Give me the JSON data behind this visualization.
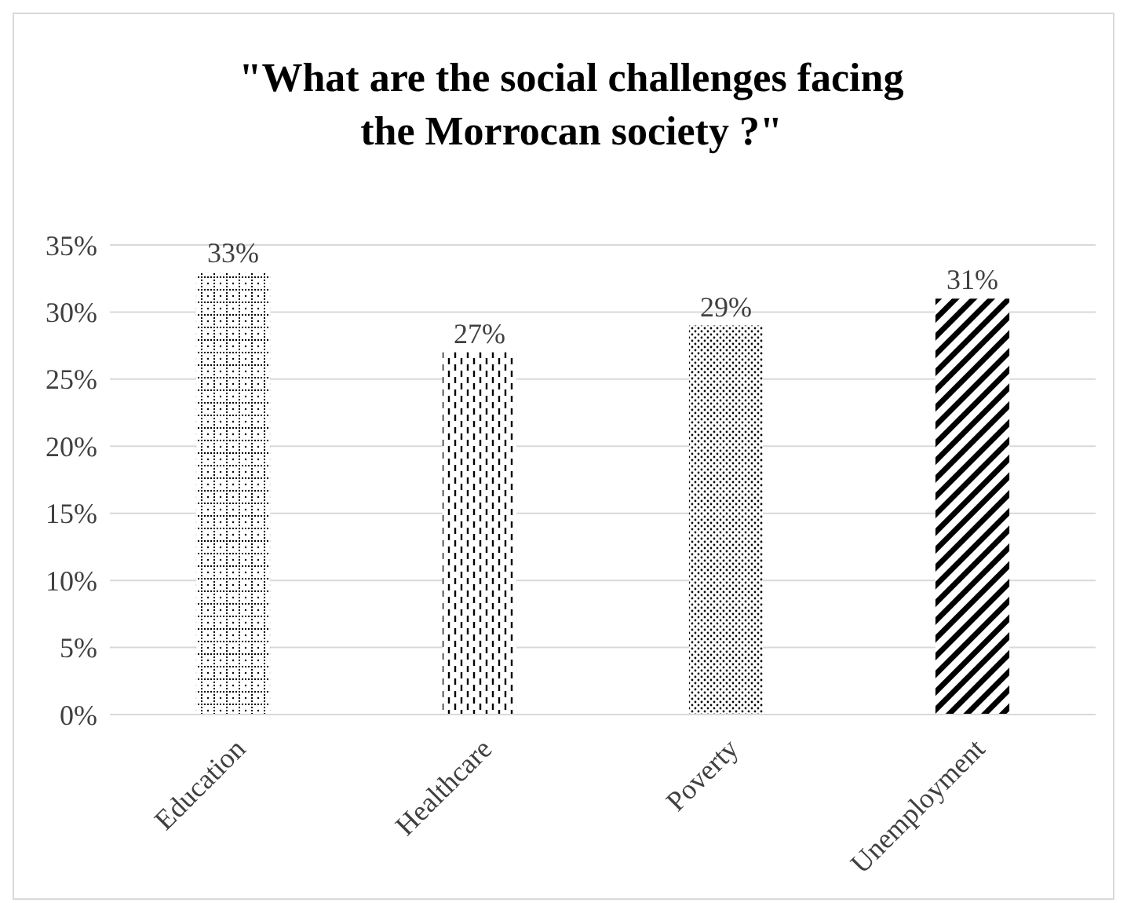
{
  "chart_data": {
    "type": "bar",
    "title": "\"What are the social challenges facing the Morrocan society ?\"",
    "categories": [
      "Education",
      "Healthcare",
      "Poverty",
      "Unemployment"
    ],
    "values": [
      33,
      27,
      29,
      31
    ],
    "color": "#000000",
    "value_labels": [
      "33%",
      "27%",
      "29%",
      "31%"
    ],
    "ylim": [
      0,
      35
    ],
    "yticks": [
      {
        "value": 0,
        "label": "0%"
      },
      {
        "value": 5,
        "label": "5%"
      },
      {
        "value": 10,
        "label": "10%"
      },
      {
        "value": 15,
        "label": "15%"
      },
      {
        "value": 20,
        "label": "20%"
      },
      {
        "value": 25,
        "label": "25%"
      },
      {
        "value": 30,
        "label": "30%"
      },
      {
        "value": 35,
        "label": "35%"
      }
    ],
    "grid": "y"
  }
}
